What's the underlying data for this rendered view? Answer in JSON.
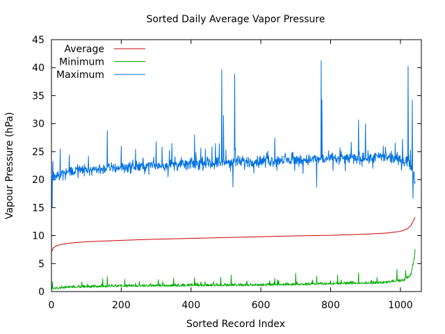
{
  "chart_data": {
    "type": "line",
    "title": "Sorted Daily Average Vapor Pressure",
    "xlabel": "Sorted Record Index",
    "ylabel": "Vapour Pressure (hPa)",
    "xlim": [
      0,
      1060
    ],
    "ylim": [
      0,
      45
    ],
    "x_ticks": [
      0,
      200,
      400,
      600,
      800,
      1000
    ],
    "y_ticks": [
      0,
      5,
      10,
      15,
      20,
      25,
      30,
      35,
      40,
      45
    ],
    "grid": false,
    "legend_position": "top-left",
    "n_points": 1043,
    "series": [
      {
        "name": "Average",
        "color": "#cc0000",
        "keypoints": [
          [
            0,
            7.0
          ],
          [
            5,
            7.8
          ],
          [
            15,
            8.2
          ],
          [
            30,
            8.45
          ],
          [
            60,
            8.7
          ],
          [
            100,
            8.9
          ],
          [
            200,
            9.15
          ],
          [
            300,
            9.35
          ],
          [
            400,
            9.5
          ],
          [
            500,
            9.65
          ],
          [
            600,
            9.8
          ],
          [
            700,
            9.95
          ],
          [
            800,
            10.05
          ],
          [
            900,
            10.25
          ],
          [
            960,
            10.45
          ],
          [
            1000,
            10.75
          ],
          [
            1020,
            11.2
          ],
          [
            1030,
            11.8
          ],
          [
            1037,
            12.6
          ],
          [
            1043,
            13.4
          ]
        ]
      },
      {
        "name": "Minimum",
        "color": "#00aa00",
        "base_keypoints": [
          [
            0,
            0.5
          ],
          [
            50,
            0.8
          ],
          [
            200,
            1.0
          ],
          [
            400,
            1.1
          ],
          [
            600,
            1.2
          ],
          [
            800,
            1.4
          ],
          [
            950,
            1.6
          ],
          [
            1010,
            2.0
          ],
          [
            1030,
            3.0
          ],
          [
            1040,
            6.0
          ],
          [
            1043,
            8.5
          ]
        ],
        "spikes": [
          [
            3,
            1.8
          ],
          [
            160,
            2.7
          ],
          [
            210,
            2.2
          ],
          [
            350,
            2.4
          ],
          [
            410,
            2.5
          ],
          [
            485,
            2.6
          ],
          [
            515,
            3.0
          ],
          [
            640,
            2.4
          ],
          [
            700,
            3.3
          ],
          [
            760,
            2.8
          ],
          [
            820,
            3.0
          ],
          [
            880,
            3.4
          ],
          [
            990,
            4.0
          ],
          [
            1015,
            3.8
          ]
        ]
      },
      {
        "name": "Maximum",
        "color": "#0070e0",
        "base_keypoints": [
          [
            0,
            20.5
          ],
          [
            50,
            21.5
          ],
          [
            200,
            22.2
          ],
          [
            400,
            22.8
          ],
          [
            600,
            23.3
          ],
          [
            800,
            23.7
          ],
          [
            950,
            24.0
          ],
          [
            1020,
            23.5
          ],
          [
            1035,
            22.0
          ],
          [
            1043,
            19.5
          ]
        ],
        "spikes": [
          [
            2,
            15.0
          ],
          [
            25,
            25.5
          ],
          [
            160,
            28.8
          ],
          [
            200,
            26.0
          ],
          [
            300,
            26.8
          ],
          [
            345,
            26.5
          ],
          [
            410,
            28.0
          ],
          [
            470,
            26.5
          ],
          [
            488,
            39.7
          ],
          [
            493,
            31.5
          ],
          [
            520,
            18.6
          ],
          [
            525,
            38.9
          ],
          [
            640,
            27.5
          ],
          [
            760,
            18.6
          ],
          [
            773,
            41.3
          ],
          [
            775,
            34.3
          ],
          [
            880,
            30.7
          ],
          [
            900,
            30.0
          ],
          [
            1022,
            40.3
          ],
          [
            1034,
            34.2
          ],
          [
            1036,
            16.6
          ]
        ]
      }
    ]
  }
}
